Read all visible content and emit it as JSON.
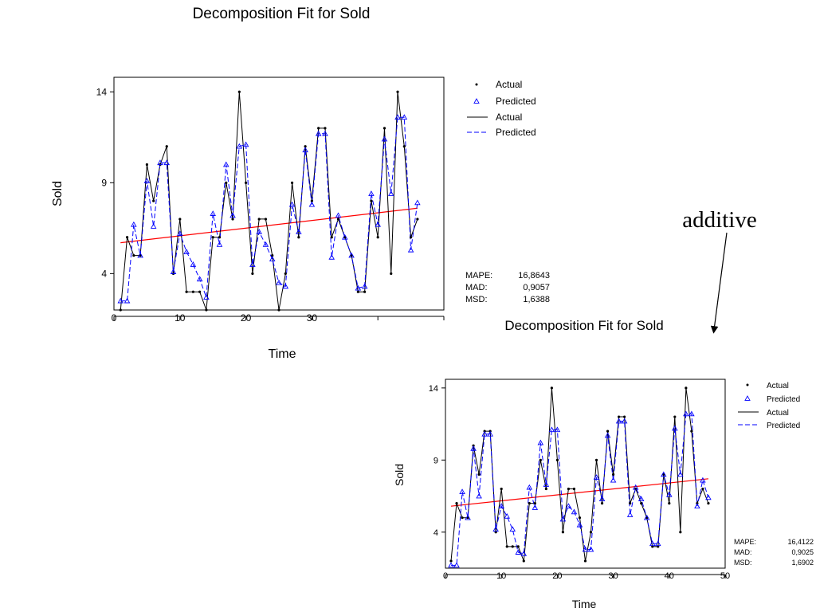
{
  "annotation": {
    "text": "additive"
  },
  "legend": {
    "actual_symbol": "Actual",
    "predicted_symbol": "Predicted",
    "actual_line": "Actual",
    "predicted_line": "Predicted"
  },
  "colors": {
    "actual": "#000000",
    "predicted": "#0000ff",
    "trend": "#ff0000",
    "axis": "#000000"
  },
  "chart_data": [
    {
      "type": "line",
      "title": "Decomposition Fit for Sold",
      "xlabel": "Time",
      "ylabel": "Sold",
      "xlim": [
        0,
        50
      ],
      "ylim": [
        2,
        14.8
      ],
      "xticks": [
        0,
        10,
        20,
        30
      ],
      "yticks": [
        4,
        9,
        14
      ],
      "stats": [
        {
          "label": "MAPE:",
          "value": "16,8643"
        },
        {
          "label": "MAD:",
          "value": "0,9057"
        },
        {
          "label": "MSD:",
          "value": "1,6388"
        }
      ],
      "trend": {
        "x": [
          1,
          46
        ],
        "y": [
          5.7,
          7.6
        ]
      },
      "series": [
        {
          "name": "Actual",
          "x": [
            1,
            2,
            3,
            4,
            5,
            6,
            7,
            8,
            9,
            10,
            11,
            12,
            13,
            14,
            15,
            16,
            17,
            18,
            19,
            20,
            21,
            22,
            23,
            24,
            25,
            26,
            27,
            28,
            29,
            30,
            31,
            32,
            33,
            34,
            35,
            36,
            37,
            38,
            39,
            40,
            41,
            42,
            43,
            44,
            45,
            46
          ],
          "y": [
            2,
            6,
            5,
            5,
            10,
            8,
            10,
            11,
            4,
            7,
            3,
            3,
            3,
            2,
            6,
            6,
            9,
            7,
            14,
            9,
            4,
            7,
            7,
            5,
            2,
            4,
            9,
            6,
            11,
            8,
            12,
            12,
            6,
            7,
            6,
            5,
            3,
            3,
            8,
            6,
            12,
            4,
            14,
            11,
            6,
            7
          ]
        },
        {
          "name": "Predicted",
          "x": [
            1,
            2,
            3,
            4,
            5,
            6,
            7,
            8,
            9,
            10,
            11,
            12,
            13,
            14,
            15,
            16,
            17,
            18,
            19,
            20,
            21,
            22,
            23,
            24,
            25,
            26,
            27,
            28,
            29,
            30,
            31,
            32,
            33,
            34,
            35,
            36,
            37,
            38,
            39,
            40,
            41,
            42,
            43,
            44,
            45,
            46
          ],
          "y": [
            2.5,
            2.5,
            6.7,
            5,
            9.1,
            6.6,
            10.1,
            10.1,
            4.1,
            6.2,
            5.2,
            4.5,
            3.7,
            2.7,
            7.3,
            5.6,
            10,
            7.2,
            11,
            11.1,
            4.5,
            6.3,
            5.6,
            4.8,
            3.5,
            3.3,
            7.8,
            6.3,
            10.8,
            7.8,
            11.7,
            11.7,
            4.9,
            7.2,
            6,
            5,
            3.2,
            3.3,
            8.4,
            6.7,
            11.4,
            8.4,
            12.6,
            12.6,
            5.3,
            7.9
          ]
        }
      ]
    },
    {
      "type": "line",
      "title": "Decomposition Fit for Sold",
      "xlabel": "Time",
      "ylabel": "Sold",
      "xlim": [
        0,
        50
      ],
      "ylim": [
        1.5,
        14.6
      ],
      "xticks": [
        0,
        10,
        20,
        30,
        40,
        50
      ],
      "yticks": [
        4,
        9,
        14
      ],
      "stats": [
        {
          "label": "MAPE:",
          "value": "16,4122"
        },
        {
          "label": "MAD:",
          "value": "0,9025"
        },
        {
          "label": "MSD:",
          "value": "1,6902"
        }
      ],
      "trend": {
        "x": [
          1,
          47
        ],
        "y": [
          5.8,
          7.7
        ]
      },
      "series": [
        {
          "name": "Actual",
          "x": [
            1,
            2,
            3,
            4,
            5,
            6,
            7,
            8,
            9,
            10,
            11,
            12,
            13,
            14,
            15,
            16,
            17,
            18,
            19,
            20,
            21,
            22,
            23,
            24,
            25,
            26,
            27,
            28,
            29,
            30,
            31,
            32,
            33,
            34,
            35,
            36,
            37,
            38,
            39,
            40,
            41,
            42,
            43,
            44,
            45,
            46,
            47
          ],
          "y": [
            2,
            6,
            5,
            5,
            10,
            8,
            11,
            11,
            4,
            7,
            3,
            3,
            3,
            2,
            6,
            6,
            9,
            7,
            14,
            9,
            4,
            7,
            7,
            5,
            2,
            4,
            9,
            6,
            11,
            8,
            12,
            12,
            6,
            7,
            6,
            5,
            3,
            3,
            8,
            6,
            12,
            4,
            14,
            11,
            6,
            7,
            6
          ]
        },
        {
          "name": "Predicted",
          "x": [
            1,
            2,
            3,
            4,
            5,
            6,
            7,
            8,
            9,
            10,
            11,
            12,
            13,
            14,
            15,
            16,
            17,
            18,
            19,
            20,
            21,
            22,
            23,
            24,
            25,
            26,
            27,
            28,
            29,
            30,
            31,
            32,
            33,
            34,
            35,
            36,
            37,
            38,
            39,
            40,
            41,
            42,
            43,
            44,
            45,
            46,
            47
          ],
          "y": [
            1.7,
            1.7,
            6.8,
            5,
            9.8,
            6.5,
            10.8,
            10.8,
            4.2,
            5.8,
            5.1,
            4.2,
            2.6,
            2.5,
            7.1,
            5.7,
            10.2,
            7.3,
            11.1,
            11.1,
            4.9,
            5.8,
            5.4,
            4.5,
            2.8,
            2.8,
            7.8,
            6.3,
            10.7,
            7.6,
            11.7,
            11.7,
            5.2,
            7.1,
            6.3,
            5,
            3.2,
            3.2,
            8,
            6.6,
            11.2,
            8,
            12.2,
            12.2,
            5.8,
            7.6,
            6.4
          ]
        }
      ]
    }
  ]
}
